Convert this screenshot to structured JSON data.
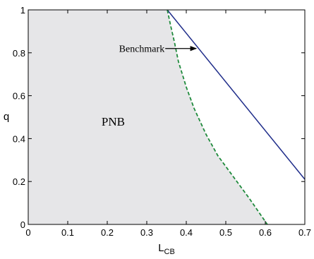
{
  "chart_data": {
    "type": "line",
    "title": "",
    "xlabel": "L",
    "xlabel_sub": "CB",
    "ylabel": "q",
    "xlim": [
      0,
      0.7
    ],
    "ylim": [
      0,
      1
    ],
    "xticks": [
      "0",
      "0.1",
      "0.2",
      "0.3",
      "0.4",
      "0.5",
      "0.6",
      "0.7"
    ],
    "yticks": [
      "0",
      "0.2",
      "0.4",
      "0.6",
      "0.8",
      "1"
    ],
    "grid": false,
    "series": [
      {
        "style": "solid",
        "color": "#1f2d8a",
        "points": [
          [
            0.352,
            1.0
          ],
          [
            0.7,
            0.21
          ]
        ]
      },
      {
        "style": "dashed",
        "color": "#1f8a3c",
        "points": [
          [
            0.352,
            1.0
          ],
          [
            0.36,
            0.93
          ],
          [
            0.37,
            0.85
          ],
          [
            0.38,
            0.76
          ],
          [
            0.4,
            0.64
          ],
          [
            0.42,
            0.54
          ],
          [
            0.45,
            0.42
          ],
          [
            0.48,
            0.32
          ],
          [
            0.52,
            0.22
          ],
          [
            0.56,
            0.12
          ],
          [
            0.59,
            0.04
          ],
          [
            0.605,
            0.0
          ]
        ]
      }
    ],
    "region": {
      "label": "PNB",
      "fill": "#e6e6e8",
      "label_pos": [
        0.215,
        0.48
      ]
    },
    "annotations": [
      {
        "text": "Benchmark",
        "pos": [
          0.345,
          0.82
        ],
        "arrow_to": [
          0.425,
          0.82
        ]
      }
    ]
  }
}
